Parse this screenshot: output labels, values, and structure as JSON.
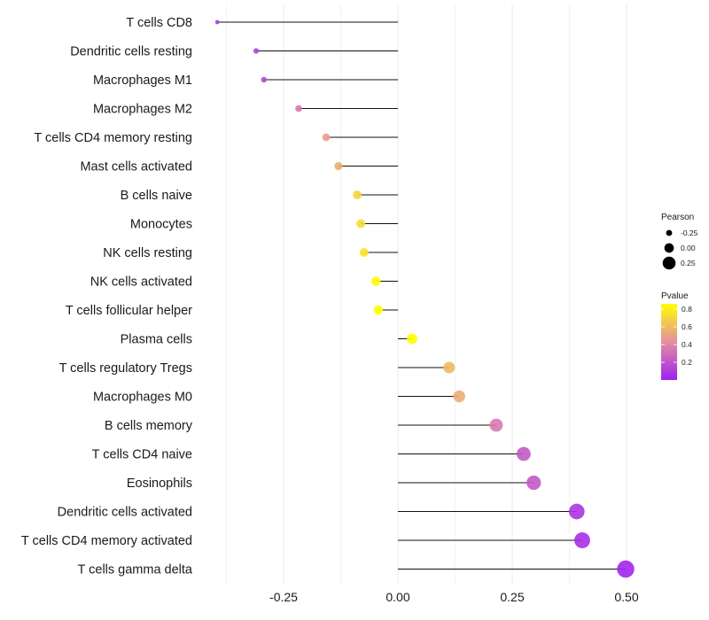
{
  "chart_data": {
    "type": "lollipop",
    "title": "",
    "xlabel": "",
    "ylabel": "",
    "xlim": [
      -0.42,
      0.52
    ],
    "x_ticks": [
      -0.25,
      0.0,
      0.25,
      0.5
    ],
    "x_tick_labels": [
      "-0.25",
      "0.00",
      "0.25",
      "0.50"
    ],
    "grid": true,
    "categories": [
      "T cells CD8",
      "Dendritic cells resting",
      "Macrophages M1",
      "Macrophages M2",
      "T cells CD4 memory resting",
      "Mast cells activated",
      "B cells naive",
      "Monocytes",
      "NK cells resting",
      "NK cells activated",
      "T cells follicular helper",
      "Plasma cells",
      "T cells regulatory  Tregs ",
      "Macrophages M0",
      "B cells memory",
      "T cells CD4 naive",
      "Eosinophils",
      "Dendritic cells activated",
      "T cells CD4 memory activated",
      "T cells gamma delta"
    ],
    "pearson": [
      -0.395,
      -0.31,
      -0.293,
      -0.217,
      -0.157,
      -0.13,
      -0.089,
      -0.081,
      -0.074,
      -0.048,
      -0.043,
      0.031,
      0.112,
      0.134,
      0.215,
      0.275,
      0.297,
      0.391,
      0.403,
      0.498
    ],
    "pvalue": [
      0.1,
      0.12,
      0.15,
      0.35,
      0.5,
      0.55,
      0.7,
      0.72,
      0.75,
      0.85,
      0.86,
      0.9,
      0.6,
      0.55,
      0.35,
      0.22,
      0.22,
      0.08,
      0.06,
      0.02
    ],
    "legend": {
      "size": {
        "title": "Pearson",
        "labels": [
          "-0.25",
          "0.00",
          "0.25"
        ],
        "values": [
          -0.25,
          0.0,
          0.25
        ]
      },
      "color": {
        "title": "Pvalue",
        "labels": [
          "0.8",
          "0.6",
          "0.4",
          "0.2"
        ],
        "values": [
          0.8,
          0.6,
          0.4,
          0.2
        ],
        "range": [
          0.0,
          0.86
        ],
        "low_color": "#a020f0",
        "mid_color": "#e38fa0",
        "high_color": "#ffff00"
      },
      "position": "right"
    }
  }
}
